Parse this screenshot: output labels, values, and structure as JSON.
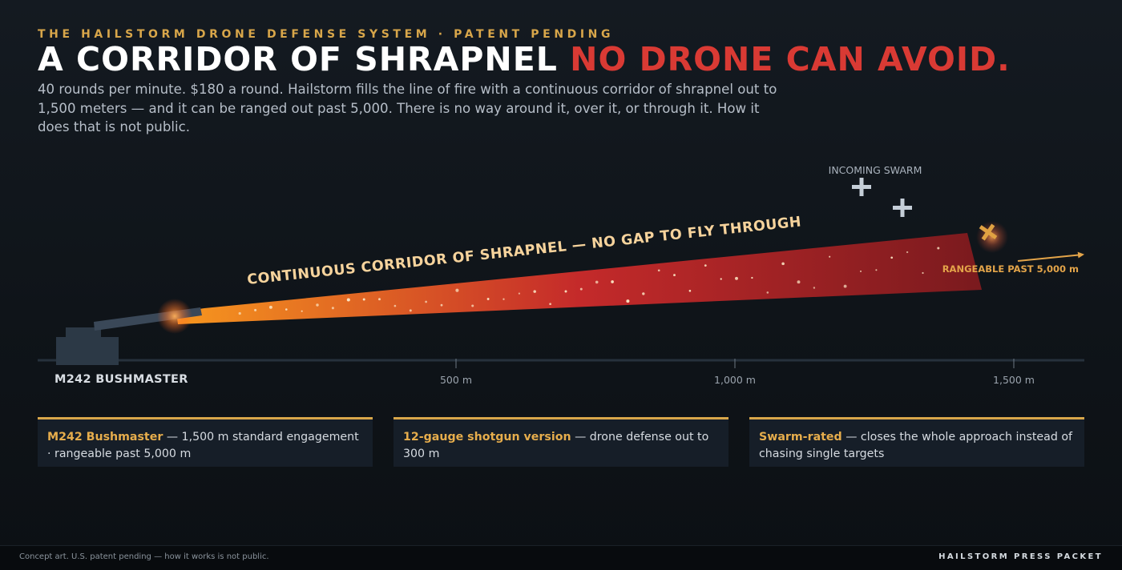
{
  "header": {
    "kicker": "THE HAILSTORM DRONE DEFENSE SYSTEM · PATENT PENDING",
    "headline_white": "A CORRIDOR OF SHRAPNEL",
    "headline_red": "NO DRONE CAN AVOID.",
    "subtitle": "40 rounds per minute. $180 a round. Hailstorm fills the line of fire with a continuous corridor of shrapnel out to 1,500 meters — and it can be ranged out past 5,000. There is no way around it, over it, or through it. How it does that is not public."
  },
  "scene": {
    "corridor_label": "CONTINUOUS CORRIDOR OF SHRAPNEL — NO GAP TO FLY THROUGH",
    "swarm_label": "INCOMING SWARM",
    "range_label": "RANGEABLE PAST 5,000 m",
    "gun_label": "M242 BUSHMASTER",
    "ticks": [
      "500 m",
      "1,000 m",
      "1,500 m"
    ],
    "colors": {
      "corridor_start": "#f7971e",
      "corridor_mid": "#c42a2a",
      "corridor_end": "#7a1a1e",
      "drone": "#c5ced8",
      "drone_hit": "#e0a242",
      "gun": "#2c3946"
    }
  },
  "cards": [
    {
      "highlight": "M242 Bushmaster",
      "text": " — 1,500 m standard engagement · rangeable past 5,000 m"
    },
    {
      "highlight": "12-gauge shotgun version",
      "text": " — drone defense out to 300 m"
    },
    {
      "highlight": "Swarm-rated",
      "text": " — closes the whole approach instead of chasing single targets"
    }
  ],
  "footer": {
    "note": "Concept art. U.S. patent pending — how it works is not public.",
    "brand": "HAILSTORM PRESS PACKET"
  }
}
